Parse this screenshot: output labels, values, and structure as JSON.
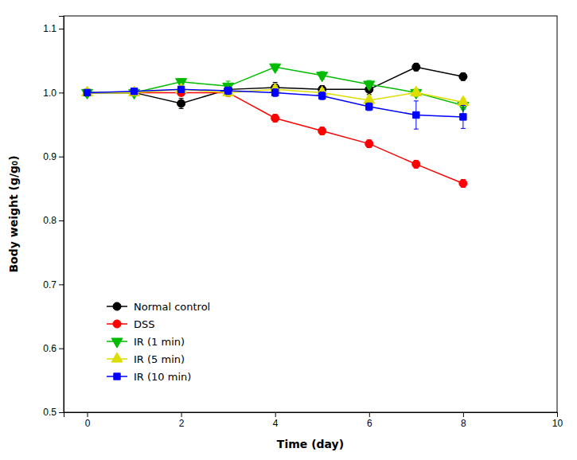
{
  "chart_data": {
    "type": "line",
    "xlabel": "Time (day)",
    "ylabel": "Body weight (g/g₀)",
    "xlim": [
      -0.5,
      10
    ],
    "ylim": [
      0.5,
      1.12
    ],
    "xticks": [
      0,
      2,
      4,
      6,
      8,
      10
    ],
    "yticks": [
      0.5,
      0.6,
      0.7,
      0.8,
      0.9,
      {
        "value": 1.0,
        "label": "1.0"
      },
      1.1
    ],
    "grid": false,
    "legend": "lower left",
    "x": [
      0,
      1,
      2,
      3,
      4,
      5,
      6,
      7,
      8
    ],
    "series": [
      {
        "name": "Normal control",
        "color": "#000000",
        "marker": "circle",
        "values": [
          1.0,
          1.0,
          0.983,
          1.005,
          1.008,
          1.005,
          1.005,
          1.04,
          1.025
        ],
        "yerr": [
          0.004,
          0.003,
          0.008,
          0.008,
          0.008,
          0.006,
          0.008,
          0.006,
          0.006
        ]
      },
      {
        "name": "DSS",
        "color": "#ff0000",
        "marker": "circle",
        "values": [
          1.0,
          1.0,
          1.0,
          1.0,
          0.96,
          0.94,
          0.92,
          0.888,
          0.858
        ],
        "yerr": [
          0.004,
          0.003,
          0.004,
          0.006,
          0.006,
          0.006,
          0.006,
          0.006,
          0.006
        ]
      },
      {
        "name": "IR (1 min)",
        "color": "#00bb00",
        "marker": "triangle-down",
        "values": [
          1.0,
          1.0,
          1.017,
          1.01,
          1.04,
          1.027,
          1.013,
          1.0,
          0.98
        ],
        "yerr": [
          0.004,
          0.003,
          0.005,
          0.008,
          0.005,
          0.006,
          0.006,
          0.006,
          0.006
        ]
      },
      {
        "name": "IR (5 min)",
        "color": "#dddd00",
        "marker": "triangle-up",
        "values": [
          1.0,
          1.0,
          1.005,
          1.0,
          1.005,
          1.0,
          0.988,
          1.0,
          0.985
        ],
        "yerr": [
          0.004,
          0.003,
          0.004,
          0.006,
          0.006,
          0.006,
          0.006,
          0.006,
          0.006
        ]
      },
      {
        "name": "IR (10 min)",
        "color": "#0000ff",
        "marker": "square",
        "values": [
          1.0,
          1.002,
          1.005,
          1.003,
          1.0,
          0.995,
          0.978,
          0.965,
          0.962
        ],
        "yerr": [
          0.004,
          0.003,
          0.004,
          0.006,
          0.006,
          0.006,
          0.006,
          0.022,
          0.018
        ]
      }
    ]
  }
}
